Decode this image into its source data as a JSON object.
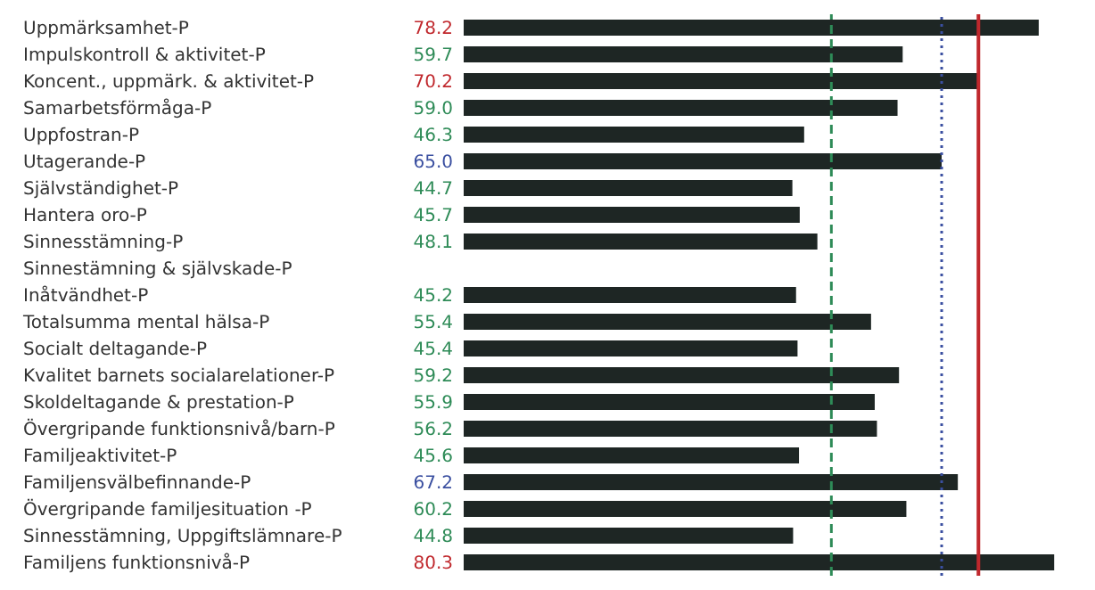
{
  "chart_data": {
    "type": "bar",
    "orientation": "horizontal",
    "categories": [
      "Uppmärksamhet-P",
      "Impulskontroll & aktivitet-P",
      "Koncent., uppmärk. & aktivitet-P",
      "Samarbetsförmåga-P",
      "Uppfostran-P",
      "Utagerande-P",
      "Självständighet-P",
      "Hantera oro-P",
      "Sinnesstämning-P",
      "Sinnestämning & självskade-P",
      "Inåtvändhet-P",
      "Totalsumma mental hälsa-P",
      "Socialt deltagande-P",
      "Kvalitet barnets socialarelationer-P",
      "Skoldeltagande & prestation-P",
      "Övergripande funktionsnivå/barn-P",
      "Familjeaktivitet-P",
      "Familjensvälbefinnande-P",
      "Övergripande familjesituation -P",
      "Sinnesstämning, Uppgiftslämnare-P",
      "Familjens funktionsnivå-P"
    ],
    "values": [
      78.2,
      59.7,
      70.2,
      59.0,
      46.3,
      65.0,
      44.7,
      45.7,
      48.1,
      null,
      45.2,
      55.4,
      45.4,
      59.2,
      55.9,
      56.2,
      45.6,
      67.2,
      60.2,
      44.8,
      80.3
    ],
    "value_labels": [
      "78.2",
      "59.7",
      "70.2",
      "59.0",
      "46.3",
      "65.0",
      "44.7",
      "45.7",
      "48.1",
      null,
      "45.2",
      "55.4",
      "45.4",
      "59.2",
      "55.9",
      "56.2",
      "45.6",
      "67.2",
      "60.2",
      "44.8",
      "80.3"
    ],
    "color": "#1e2624",
    "tick_labels": "y",
    "grid": false,
    "legend": false,
    "ref_lines": [
      {
        "axis": "x",
        "value": 50,
        "color": "#2e8b57",
        "line_style": "dashed"
      },
      {
        "axis": "x",
        "value": 65,
        "color": "#3a4fa0",
        "line_style": "dotted"
      },
      {
        "axis": "x",
        "value": 70,
        "color": "#c0282d",
        "line_style": "solid"
      }
    ]
  }
}
